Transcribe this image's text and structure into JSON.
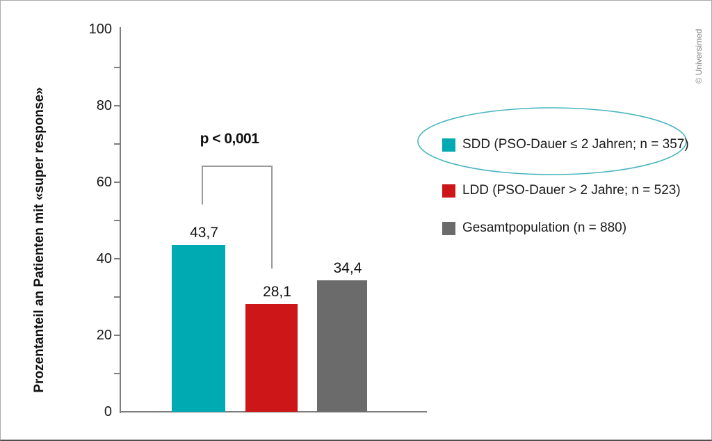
{
  "figure": {
    "copyright": "© Universimed"
  },
  "chart_data": {
    "type": "bar",
    "title": "",
    "xlabel": "",
    "ylabel": "Prozentanteil an Patienten mit «super response»",
    "ylim": [
      0,
      100
    ],
    "ytick_labeled": [
      0,
      20,
      40,
      60,
      80,
      100
    ],
    "ytick_minor_step": 10,
    "grid": false,
    "categories": [
      "SDD",
      "LDD",
      "Gesamtpopulation"
    ],
    "values": [
      43.7,
      28.1,
      34.4
    ],
    "value_labels": [
      "43,7",
      "28,1",
      "34,4"
    ],
    "bar_colors": [
      "#00AAB2",
      "#CC1618",
      "#6B6B6B"
    ],
    "significance": {
      "label": "p < 0,001",
      "between": [
        "SDD",
        "LDD"
      ],
      "bracket_color": "#9a9a9a"
    },
    "legend": {
      "position": "right",
      "items": [
        {
          "label": "SDD (PSO-Dauer ≤ 2 Jahren; n = 357)",
          "color": "#00AAB2",
          "circled": true
        },
        {
          "label": "LDD (PSO-Dauer > 2 Jahre; n = 523)",
          "color": "#CC1618",
          "circled": false
        },
        {
          "label": "Gesamtpopulation (n = 880)",
          "color": "#6B6B6B",
          "circled": false
        }
      ],
      "highlight_ellipse_color": "#47b6bd"
    }
  }
}
